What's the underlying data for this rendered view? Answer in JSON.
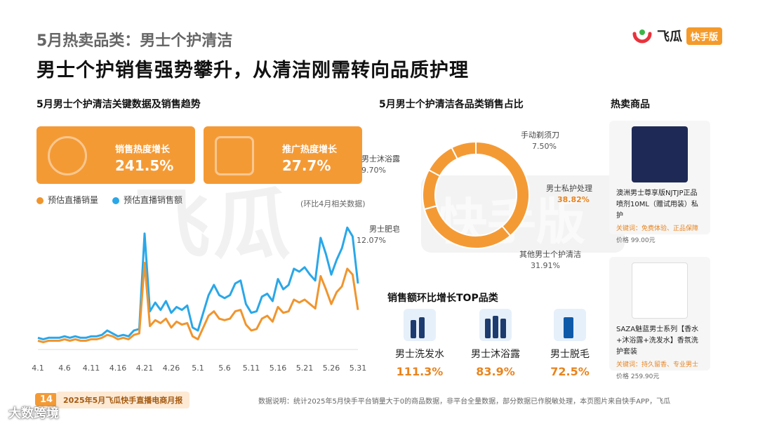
{
  "header": {
    "subtitle": "5月热卖品类：男士个护清洁",
    "headline": "男士个护销售强势攀升，从清洁刚需转向品质护理",
    "logo_text": "飞瓜",
    "logo_tag": "快手版"
  },
  "watermark": {
    "text": "飞瓜",
    "text2": "快手版"
  },
  "left": {
    "title": "5月男士个护清洁关键数据及销售趋势",
    "kpis": [
      {
        "label": "销售热度增长",
        "value": "241.5%"
      },
      {
        "label": "推广热度增长",
        "value": "27.7%"
      }
    ],
    "legend": [
      "预估直播销量",
      "预估直播销售额"
    ],
    "note": "(环比4月相关数据)"
  },
  "middle": {
    "title": "5月男士个护清洁各品类销售占比",
    "top_title": "销售额环比增长TOP品类",
    "top_items": [
      {
        "name": "男士洗发水",
        "pct": "111.3%"
      },
      {
        "name": "男士沐浴露",
        "pct": "83.9%"
      },
      {
        "name": "男士脱毛",
        "pct": "72.5%"
      }
    ]
  },
  "right": {
    "title": "热卖商品",
    "products": [
      {
        "desc": "澳洲男士尊享版NJTJP正品喷剂10ML（赠试用装）私护",
        "keywords": "关键词：免费体验、正品保障",
        "price": "价格  99.00元"
      },
      {
        "desc": "SAZA魅蓝男士系列【香水+沐浴露+洗发水】香氛洗护套装",
        "keywords": "关键词：持久留香、专业男士",
        "price": "价格  259.90元"
      }
    ]
  },
  "footer": {
    "page": "14",
    "report": "2025年5月飞瓜快手直播电商月报",
    "note": "数据说明：统计2025年5月快手平台销量大于0的商品数据，非平台全量数据，部分数据已作脱敏处理，本页图片来自快手APP，飞瓜",
    "credit": "大数跨境"
  },
  "colors": {
    "accent": "#f49a35",
    "orange_line": "#f0952e",
    "blue_line": "#2aa7e8",
    "donut": "#f49a35",
    "donut_inner": "#f8d2a3"
  },
  "chart_data": [
    {
      "type": "line",
      "x": [
        "4.1",
        "4.2",
        "4.3",
        "4.4",
        "4.5",
        "4.6",
        "4.7",
        "4.8",
        "4.9",
        "4.10",
        "4.11",
        "4.12",
        "4.13",
        "4.14",
        "4.15",
        "4.16",
        "4.17",
        "4.18",
        "4.19",
        "4.20",
        "4.21",
        "4.22",
        "4.23",
        "4.24",
        "4.25",
        "4.26",
        "4.27",
        "4.28",
        "4.29",
        "4.30",
        "5.1",
        "5.2",
        "5.3",
        "5.4",
        "5.5",
        "5.6",
        "5.7",
        "5.8",
        "5.9",
        "5.10",
        "5.11",
        "5.12",
        "5.13",
        "5.14",
        "5.15",
        "5.16",
        "5.17",
        "5.18",
        "5.19",
        "5.20",
        "5.21",
        "5.22",
        "5.23",
        "5.24",
        "5.25",
        "5.26",
        "5.27",
        "5.28",
        "5.29",
        "5.30",
        "5.31"
      ],
      "xticks": [
        "4.1",
        "4.6",
        "4.11",
        "4.16",
        "4.21",
        "4.26",
        "5.1",
        "5.6",
        "5.11",
        "5.16",
        "5.21",
        "5.26",
        "5.31"
      ],
      "series": [
        {
          "name": "预估直播销量",
          "values": [
            5,
            4,
            5,
            5,
            5,
            6,
            5,
            6,
            5,
            5,
            6,
            6,
            7,
            9,
            8,
            6,
            7,
            6,
            9,
            10,
            58,
            15,
            19,
            17,
            20,
            14,
            18,
            16,
            17,
            8,
            6,
            14,
            22,
            25,
            20,
            19,
            20,
            25,
            26,
            16,
            12,
            13,
            20,
            22,
            18,
            28,
            24,
            25,
            33,
            31,
            33,
            30,
            27,
            49,
            40,
            30,
            38,
            42,
            54,
            50,
            26
          ]
        },
        {
          "name": "预估直播销售额",
          "values": [
            7,
            6,
            7,
            7,
            7,
            8,
            7,
            8,
            7,
            7,
            8,
            8,
            9,
            12,
            10,
            8,
            9,
            8,
            12,
            13,
            78,
            25,
            31,
            26,
            32,
            24,
            28,
            26,
            29,
            14,
            12,
            24,
            36,
            43,
            36,
            34,
            36,
            44,
            46,
            30,
            24,
            25,
            35,
            37,
            32,
            47,
            40,
            43,
            54,
            52,
            55,
            50,
            46,
            75,
            64,
            50,
            60,
            68,
            82,
            76,
            44
          ]
        }
      ],
      "xlabel": "",
      "ylabel": ""
    },
    {
      "type": "pie",
      "categories": [
        "男士私护处理",
        "其他男士个护清洁",
        "男士肥皂",
        "男士沐浴露",
        "手动剃须刀"
      ],
      "values": [
        38.82,
        31.91,
        12.07,
        9.7,
        7.5
      ],
      "labels": [
        "38.82%",
        "31.91%",
        "12.07%",
        "9.70%",
        "7.50%"
      ]
    }
  ]
}
